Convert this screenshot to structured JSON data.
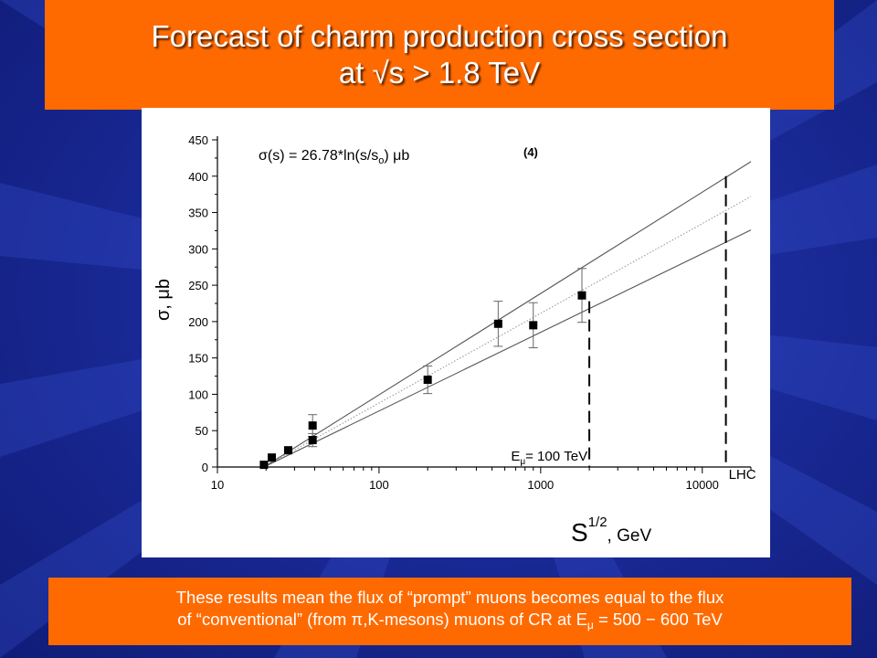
{
  "slide": {
    "title_line1": "Forecast of charm production cross section",
    "title_line2": "at √s > 1.8 TeV",
    "caption_line1": "These results mean the flux of “prompt” muons becomes equal to the flux",
    "caption_line2_a": "of “conventional” (from π,K-mesons) muons of CR at E",
    "caption_line2_sub": "μ",
    "caption_line2_b": " = 500 − 600 TeV",
    "colors": {
      "background": "#1a2a98",
      "banner": "#ff6a00",
      "text": "#ffffff"
    }
  },
  "chart_data": {
    "type": "scatter",
    "xscale": "log",
    "xlim": [
      10,
      20000
    ],
    "ylim": [
      0,
      450
    ],
    "xticks": [
      "10",
      "100",
      "1000",
      "10000"
    ],
    "yticks": [
      "0",
      "50",
      "100",
      "150",
      "200",
      "250",
      "300",
      "350",
      "400",
      "450"
    ],
    "xlabel_main": "S",
    "xlabel_sup": "1/2",
    "xlabel_unit": ", GeV",
    "ylabel": "σ, μb",
    "formula": "σ(s) = 26.78*ln(s/s",
    "formula_sub": "o",
    "formula_tail": ") μb",
    "formula_tag": "(4)",
    "points": [
      {
        "x": 19.4,
        "y": 3
      },
      {
        "x": 21.7,
        "y": 13
      },
      {
        "x": 27.4,
        "y": 23
      },
      {
        "x": 38.8,
        "y": 57,
        "err": 15
      },
      {
        "x": 38.8,
        "y": 37,
        "err": 9
      },
      {
        "x": 200,
        "y": 120,
        "err": 19
      },
      {
        "x": 546,
        "y": 197,
        "err": 31
      },
      {
        "x": 900,
        "y": 195,
        "err": 31
      },
      {
        "x": 1800,
        "y": 236,
        "err": 37
      }
    ],
    "fit_lines": [
      {
        "name": "upper",
        "x": [
          19.4,
          20000
        ],
        "y": [
          0,
          420
        ],
        "style": "solid"
      },
      {
        "name": "central",
        "x": [
          19.4,
          20000
        ],
        "y": [
          0,
          372
        ],
        "style": "dotted"
      },
      {
        "name": "lower",
        "x": [
          19.4,
          20000
        ],
        "y": [
          0,
          326
        ],
        "style": "solid"
      }
    ],
    "markers": [
      {
        "label_main": "E",
        "label_sub": "μ",
        "label_tail": "= 100 TeV",
        "x": 2000,
        "y_top": 228
      },
      {
        "label_main": "LHC",
        "label_sub": "",
        "label_tail": "",
        "x": 14000,
        "y_top": 400
      }
    ]
  }
}
